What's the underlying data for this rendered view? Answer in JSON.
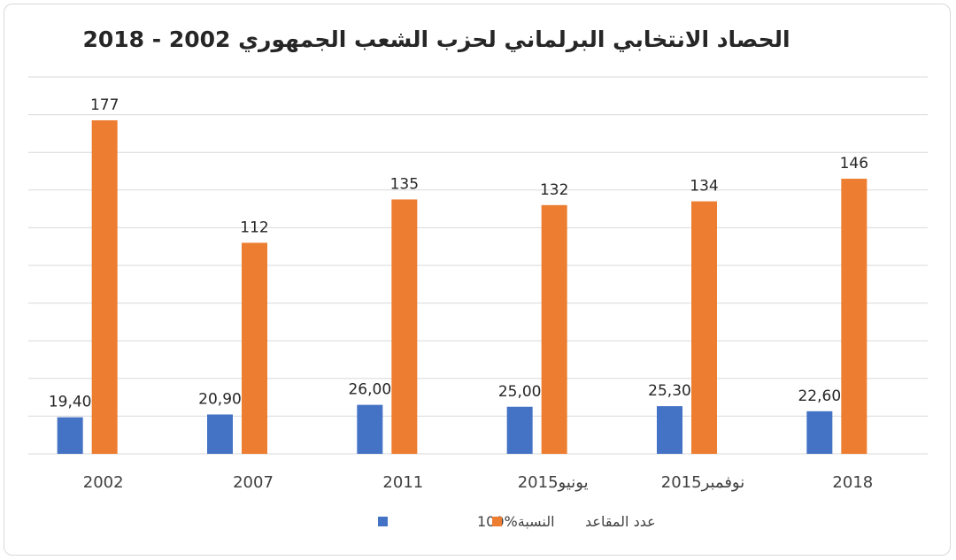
{
  "chart_data": {
    "type": "bar",
    "title": "الحصاد الانتخابي البرلماني لحزب الشعب الجمهوري 2002 - 2018",
    "categories": [
      "2002",
      "2007",
      "2011",
      "يونيو2015",
      "نوفمبر2015",
      "2018"
    ],
    "series": [
      {
        "name": "النسبة%100",
        "color": "#4472c4",
        "values": [
          19.4,
          20.9,
          26.0,
          25.0,
          25.3,
          22.6
        ],
        "labels": [
          "19,40",
          "20,90",
          "26,00",
          "25,00",
          "25,30",
          "22,60"
        ]
      },
      {
        "name": "عدد المقاعد",
        "color": "#ed7d31",
        "values": [
          177,
          112,
          135,
          132,
          134,
          146
        ],
        "labels": [
          "177",
          "112",
          "135",
          "132",
          "134",
          "146"
        ]
      }
    ],
    "ylim": [
      0,
      200
    ],
    "grid": true,
    "legend": "bottom",
    "xlabel": "",
    "ylabel": ""
  }
}
